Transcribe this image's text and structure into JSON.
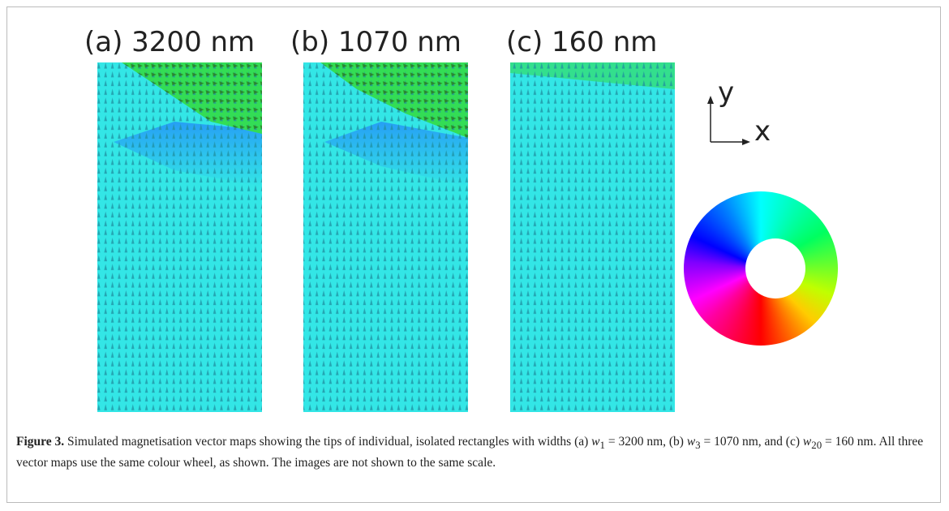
{
  "panels": [
    {
      "label": "(a) 3200 nm"
    },
    {
      "label": "(b) 1070 nm"
    },
    {
      "label": "(c) 160 nm"
    }
  ],
  "axes": {
    "y": "y",
    "x": "x"
  },
  "caption": {
    "label": "Figure 3.",
    "parts": [
      " Simulated magnetisation vector maps showing the tips of individual, isolated rectangles with widths (a) ",
      "w",
      "1",
      " = 3200 nm, (b) ",
      "w",
      "3",
      " = 1070 nm, and (c) ",
      "w",
      "20",
      " = 160 nm. All three vector maps use the same colour wheel, as shown. The images are not shown to the same scale."
    ]
  }
}
